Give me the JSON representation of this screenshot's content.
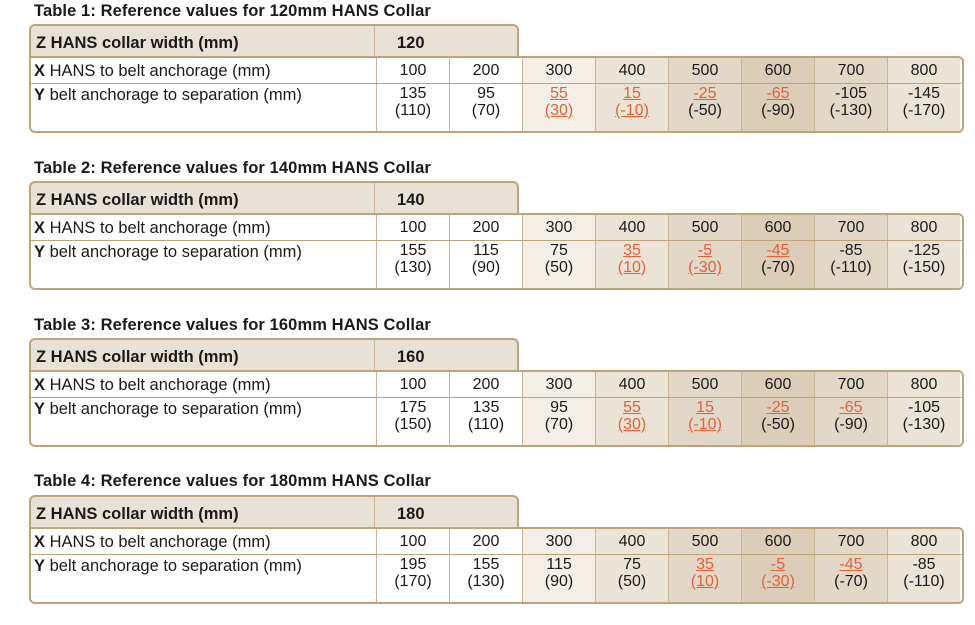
{
  "row_x_bold": "X",
  "row_x_rest": " HANS to belt anchorage (mm)",
  "row_y_bold": "Y",
  "row_y_rest": " belt anchorage to separation (mm)",
  "z_label": "Z HANS collar width (mm)",
  "colors": {
    "border": "#bfa37a",
    "highlight": "#e0623a",
    "header_bg": "#e8e1d6"
  },
  "tables": [
    {
      "title": "Table 1: Reference values for 120mm HANS Collar",
      "z": "120",
      "x": [
        "100",
        "200",
        "300",
        "400",
        "500",
        "600",
        "700",
        "800"
      ],
      "y": [
        [
          "135",
          "(110)"
        ],
        [
          "95",
          "(70)"
        ],
        [
          "55",
          "(30)"
        ],
        [
          "15",
          "(-10)"
        ],
        [
          "-25",
          "(-50)"
        ],
        [
          "-65",
          "(-90)"
        ],
        [
          "-105",
          "(-130)"
        ],
        [
          "-145",
          "(-170)"
        ]
      ],
      "hl": [
        [
          0,
          0
        ],
        [
          0,
          0
        ],
        [
          1,
          1
        ],
        [
          1,
          1
        ],
        [
          1,
          0
        ],
        [
          1,
          0
        ],
        [
          0,
          0
        ],
        [
          0,
          0
        ]
      ]
    },
    {
      "title": "Table 2: Reference values for 140mm HANS Collar",
      "z": "140",
      "x": [
        "100",
        "200",
        "300",
        "400",
        "500",
        "600",
        "700",
        "800"
      ],
      "y": [
        [
          "155",
          "(130)"
        ],
        [
          "115",
          "(90)"
        ],
        [
          "75",
          "(50)"
        ],
        [
          "35",
          "(10)"
        ],
        [
          "-5",
          "(-30)"
        ],
        [
          "-45",
          "(-70)"
        ],
        [
          "-85",
          "(-110)"
        ],
        [
          "-125",
          "(-150)"
        ]
      ],
      "hl": [
        [
          0,
          0
        ],
        [
          0,
          0
        ],
        [
          0,
          0
        ],
        [
          1,
          1
        ],
        [
          1,
          1
        ],
        [
          1,
          0
        ],
        [
          0,
          0
        ],
        [
          0,
          0
        ]
      ]
    },
    {
      "title": "Table 3: Reference values for 160mm HANS Collar",
      "z": "160",
      "x": [
        "100",
        "200",
        "300",
        "400",
        "500",
        "600",
        "700",
        "800"
      ],
      "y": [
        [
          "175",
          "(150)"
        ],
        [
          "135",
          "(110)"
        ],
        [
          "95",
          "(70)"
        ],
        [
          "55",
          "(30)"
        ],
        [
          "15",
          "(-10)"
        ],
        [
          "-25",
          "(-50)"
        ],
        [
          "-65",
          "(-90)"
        ],
        [
          "-105",
          "(-130)"
        ]
      ],
      "hl": [
        [
          0,
          0
        ],
        [
          0,
          0
        ],
        [
          0,
          0
        ],
        [
          1,
          1
        ],
        [
          1,
          1
        ],
        [
          1,
          0
        ],
        [
          1,
          0
        ],
        [
          0,
          0
        ]
      ]
    },
    {
      "title": "Table 4: Reference values for 180mm HANS Collar",
      "z": "180",
      "x": [
        "100",
        "200",
        "300",
        "400",
        "500",
        "600",
        "700",
        "800"
      ],
      "y": [
        [
          "195",
          "(170)"
        ],
        [
          "155",
          "(130)"
        ],
        [
          "115",
          "(90)"
        ],
        [
          "75",
          "(50)"
        ],
        [
          "35",
          "(10)"
        ],
        [
          "-5",
          "(-30)"
        ],
        [
          "-45",
          "(-70)"
        ],
        [
          "-85",
          "(-110)"
        ]
      ],
      "hl": [
        [
          0,
          0
        ],
        [
          0,
          0
        ],
        [
          0,
          0
        ],
        [
          0,
          0
        ],
        [
          1,
          1
        ],
        [
          1,
          1
        ],
        [
          1,
          0
        ],
        [
          0,
          0
        ]
      ]
    }
  ]
}
